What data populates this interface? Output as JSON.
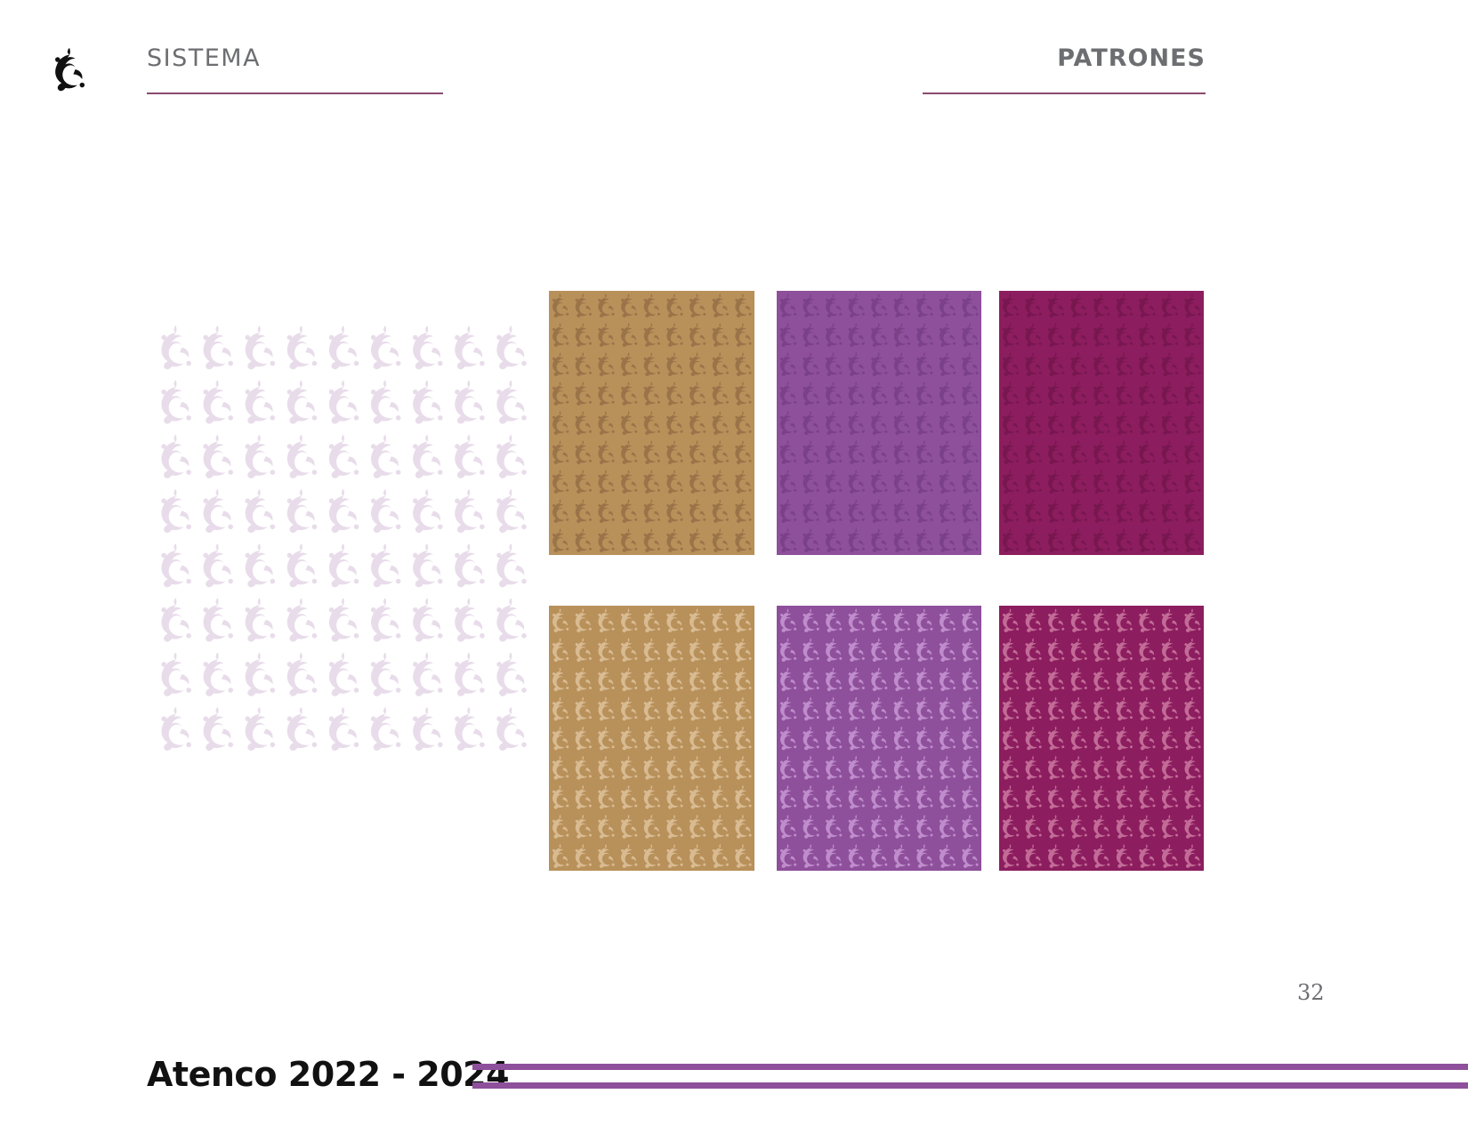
{
  "header": {
    "section": "SISTEMA",
    "topic": "PATRONES"
  },
  "colors": {
    "rule": "#8b4a6f",
    "band": "#8e4f9b",
    "light_motif": "#e8dcea",
    "gold": "#b8905a",
    "violet": "#8e4f9b",
    "magenta": "#8c1d5f"
  },
  "swatches": [
    {
      "name": "light-pattern",
      "bg": "#ffffff",
      "motif": "#e8dcea"
    },
    {
      "name": "gold-dark-pattern",
      "bg": "#b8905a",
      "motif": "#9a7448"
    },
    {
      "name": "violet-dark-pattern",
      "bg": "#8e4f9b",
      "motif": "#7a4088"
    },
    {
      "name": "magenta-dark-pattern",
      "bg": "#8c1d5f",
      "motif": "#78174f"
    },
    {
      "name": "gold-light-pattern",
      "bg": "#b8905a",
      "motif": "#d9bb92"
    },
    {
      "name": "violet-light-pattern",
      "bg": "#8e4f9b",
      "motif": "#bf8ccc"
    },
    {
      "name": "magenta-light-pattern",
      "bg": "#8c1d5f",
      "motif": "#c26b97"
    }
  ],
  "page_number": "32",
  "footer": {
    "title": "Atenco 2022 - 2024"
  }
}
